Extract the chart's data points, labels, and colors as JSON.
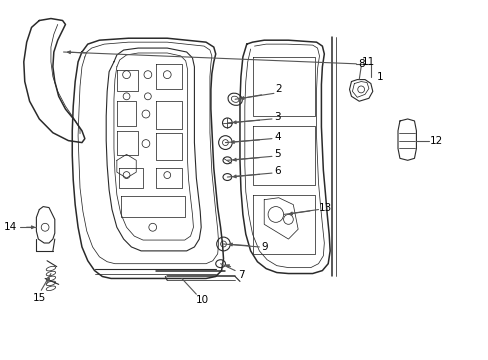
{
  "background_color": "#ffffff",
  "line_color": "#2a2a2a",
  "label_color": "#000000",
  "arrow_color": "#555555",
  "lw_main": 1.1,
  "lw_med": 0.8,
  "lw_thin": 0.55,
  "label_fs": 7.0,
  "fig_w": 4.89,
  "fig_h": 3.6,
  "dpi": 100
}
